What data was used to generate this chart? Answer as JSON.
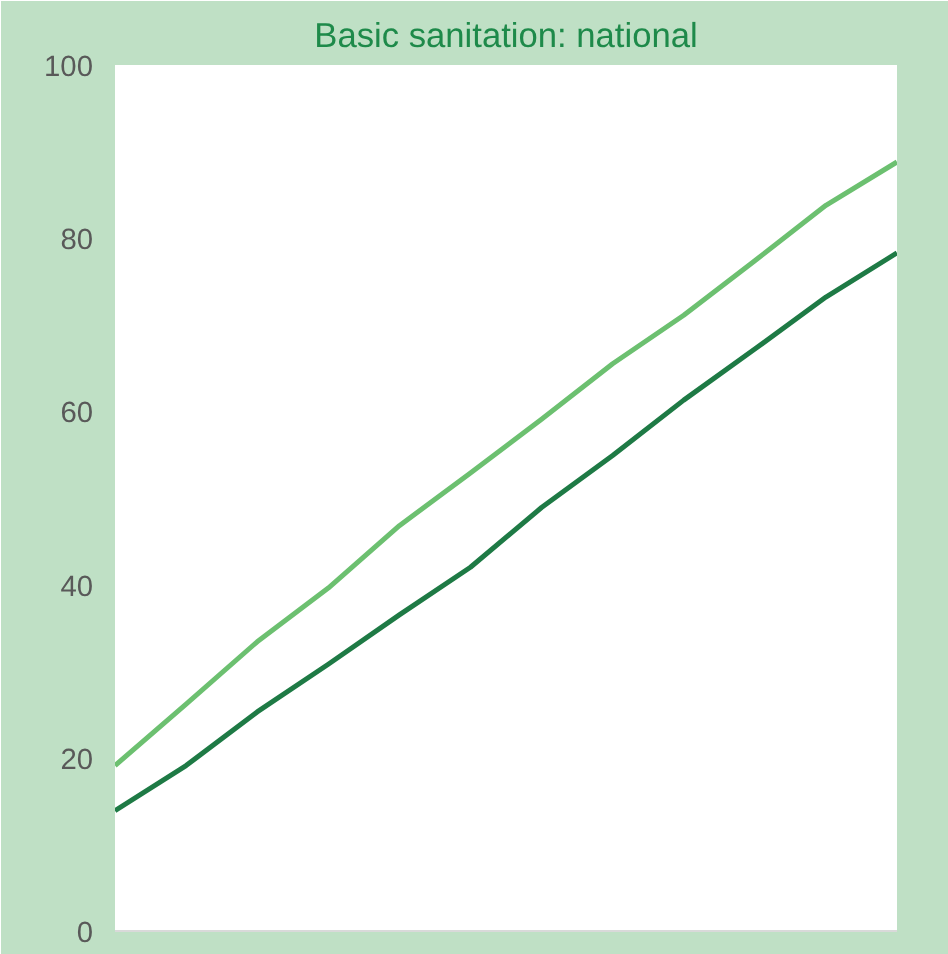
{
  "chart_data": {
    "type": "line",
    "title": "Basic sanitation: national",
    "categories": [
      null,
      null,
      null,
      null,
      null,
      null,
      null,
      null,
      null,
      null,
      null,
      null
    ],
    "series": [
      {
        "color": "#6cc070",
        "values": [
          19.1,
          26.2,
          33.4,
          39.6,
          46.8,
          52.9,
          59.1,
          65.5,
          71.1,
          77.4,
          83.8,
          88.8
        ]
      },
      {
        "color": "#1e7a45",
        "values": [
          13.9,
          19.1,
          25.3,
          30.8,
          36.5,
          42.0,
          48.9,
          54.9,
          61.3,
          67.2,
          73.2,
          78.3
        ]
      }
    ],
    "ylim": [
      0,
      100
    ],
    "yticks": [
      0,
      20,
      40,
      60,
      80,
      100
    ],
    "grid": false,
    "marker": "none",
    "line_style": "solid",
    "tick_labels": "y"
  }
}
